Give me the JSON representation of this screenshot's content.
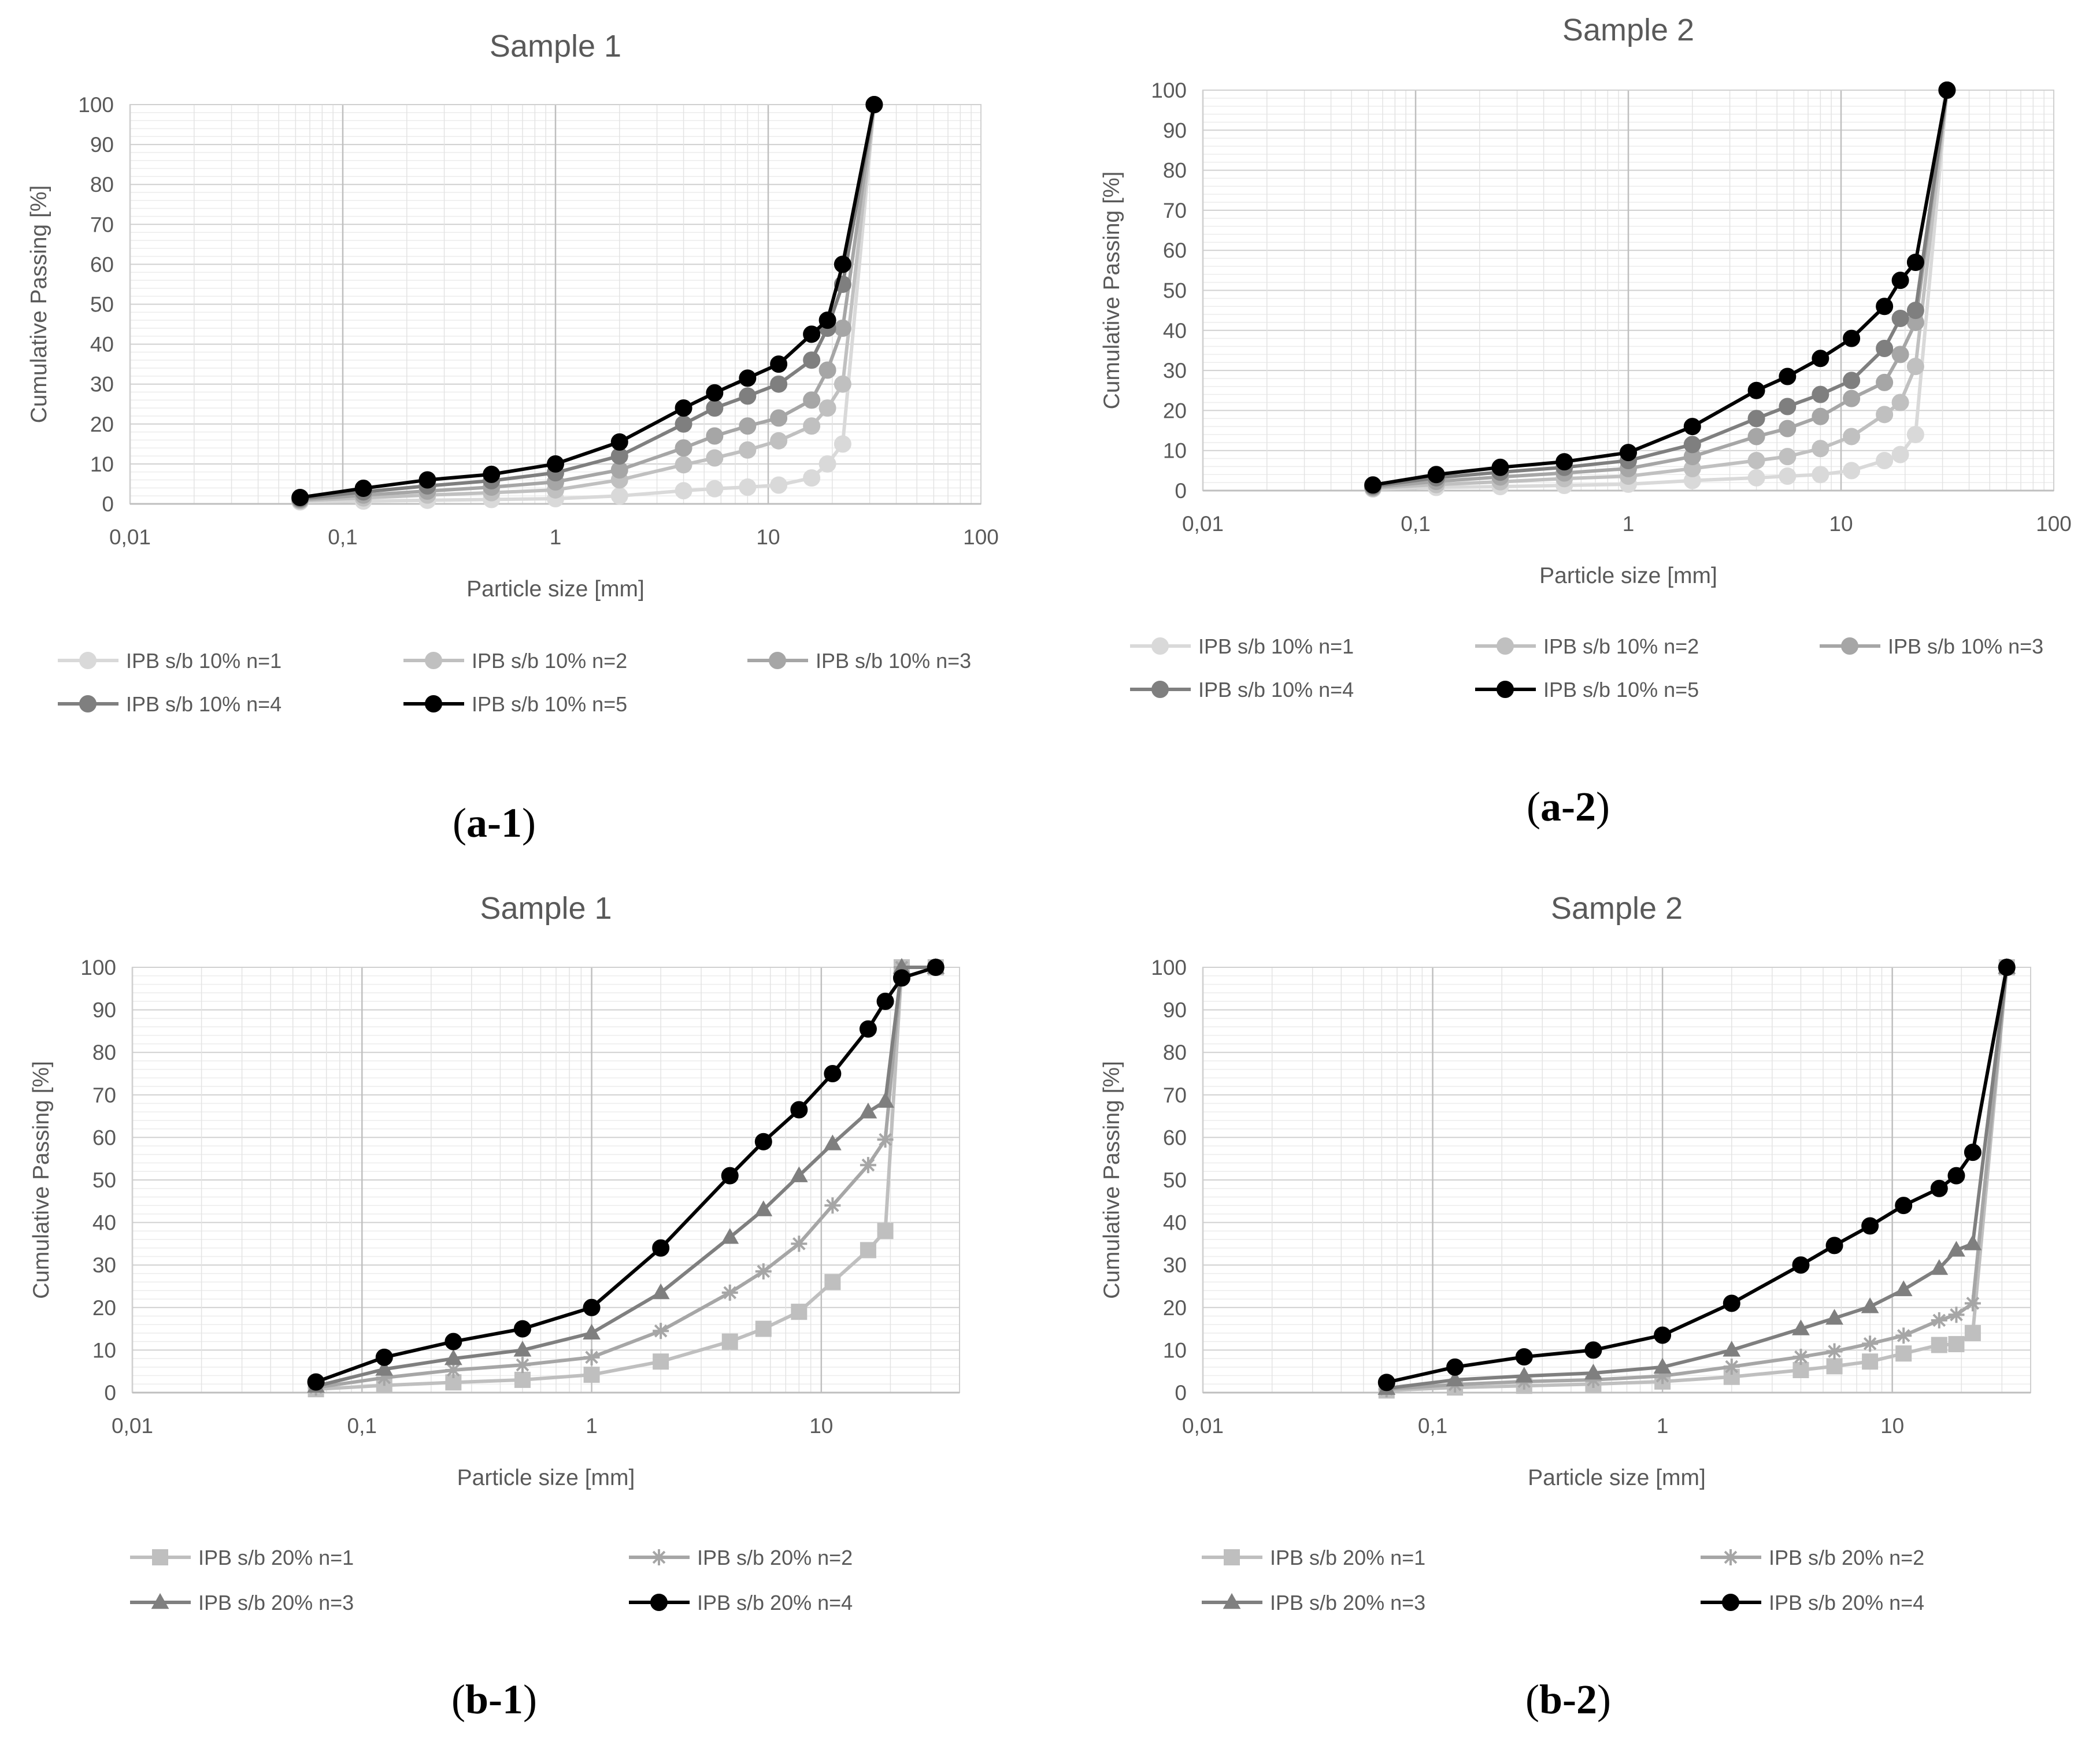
{
  "chart_data": [
    {
      "type": "line",
      "caption_letter": "a-1",
      "title": "Sample 1",
      "xlabel": "Particle size [mm]",
      "ylabel": "Cumulative Passing [%]",
      "xscale": "log",
      "xlim": [
        0.01,
        100
      ],
      "ylim": [
        0,
        100
      ],
      "xtick_labels": [
        "0,01",
        "0,1",
        "1",
        "10",
        "100"
      ],
      "ytick_labels": [
        "0",
        "10",
        "20",
        "30",
        "40",
        "50",
        "60",
        "70",
        "80",
        "90",
        "100"
      ],
      "grid": true,
      "legend_position": "bottom",
      "x": [
        0.063,
        0.125,
        0.25,
        0.5,
        1,
        2,
        4,
        5.6,
        8,
        11.2,
        16,
        19,
        22.4,
        31.5
      ],
      "series": [
        {
          "name": "IPB s/b 10% n=1",
          "color": "#d9d9d9",
          "marker": "circle",
          "values": [
            0.5,
            0.7,
            0.9,
            1.1,
            1.3,
            2,
            3.3,
            3.8,
            4.2,
            4.7,
            6.5,
            10,
            15,
            100
          ]
        },
        {
          "name": "IPB s/b 10% n=2",
          "color": "#c0c0c0",
          "marker": "circle",
          "values": [
            0.8,
            1.5,
            2.2,
            2.8,
            3.5,
            6,
            9.8,
            11.5,
            13.5,
            15.8,
            19.5,
            24,
            30,
            100
          ]
        },
        {
          "name": "IPB s/b 10% n=3",
          "color": "#a6a6a6",
          "marker": "circle",
          "values": [
            1.0,
            2.2,
            3.2,
            4.2,
            5.5,
            8.5,
            14,
            17,
            19.5,
            21.5,
            26,
            33.5,
            44,
            100
          ]
        },
        {
          "name": "IPB s/b 10% n=4",
          "color": "#7f7f7f",
          "marker": "circle",
          "values": [
            1.3,
            3.0,
            4.5,
            5.8,
            7.8,
            12,
            20,
            24,
            27,
            30,
            36,
            44,
            55,
            100
          ]
        },
        {
          "name": "IPB s/b 10% n=5",
          "color": "#000000",
          "marker": "circle",
          "values": [
            1.6,
            3.9,
            6.0,
            7.4,
            10,
            15.5,
            24,
            27.8,
            31.5,
            35,
            42.5,
            46,
            60,
            100
          ]
        }
      ]
    },
    {
      "type": "line",
      "caption_letter": "a-2",
      "title": "Sample 2",
      "xlabel": "Particle size [mm]",
      "ylabel": "Cumulative Passing [%]",
      "xscale": "log",
      "xlim": [
        0.01,
        100
      ],
      "ylim": [
        0,
        100
      ],
      "xtick_labels": [
        "0,01",
        "0,1",
        "1",
        "10",
        "100"
      ],
      "ytick_labels": [
        "0",
        "10",
        "20",
        "30",
        "40",
        "50",
        "60",
        "70",
        "80",
        "90",
        "100"
      ],
      "grid": true,
      "legend_position": "bottom",
      "x": [
        0.063,
        0.125,
        0.25,
        0.5,
        1,
        2,
        4,
        5.6,
        8,
        11.2,
        16,
        19,
        22.4,
        31.5
      ],
      "series": [
        {
          "name": "IPB s/b 10% n=1",
          "color": "#d9d9d9",
          "marker": "circle",
          "values": [
            0.4,
            0.8,
            1.0,
            1.3,
            1.6,
            2.5,
            3.2,
            3.6,
            4.0,
            5.0,
            7.5,
            9,
            14,
            100
          ]
        },
        {
          "name": "IPB s/b 10% n=2",
          "color": "#c0c0c0",
          "marker": "circle",
          "values": [
            0.6,
            1.5,
            2.2,
            3.0,
            3.6,
            5.5,
            7.5,
            8.5,
            10.5,
            13.5,
            19,
            22,
            31,
            100
          ]
        },
        {
          "name": "IPB s/b 10% n=3",
          "color": "#a6a6a6",
          "marker": "circle",
          "values": [
            0.8,
            2.3,
            3.4,
            4.4,
            5.5,
            8.5,
            13.5,
            15.5,
            18.5,
            23,
            27,
            34,
            42,
            100
          ]
        },
        {
          "name": "IPB s/b 10% n=4",
          "color": "#7f7f7f",
          "marker": "circle",
          "values": [
            1.1,
            3.2,
            4.6,
            5.8,
            7.5,
            11.5,
            18,
            21,
            24,
            27.5,
            35.5,
            43,
            45,
            100
          ]
        },
        {
          "name": "IPB s/b 10% n=5",
          "color": "#000000",
          "marker": "circle",
          "values": [
            1.4,
            4.0,
            5.8,
            7.2,
            9.5,
            16,
            25,
            28.5,
            33,
            38,
            46,
            52.5,
            57,
            100
          ]
        }
      ]
    },
    {
      "type": "line",
      "caption_letter": "b-1",
      "title": "Sample 1",
      "xlabel": "Particle size [mm]",
      "ylabel": "Cumulative Passing [%]",
      "xscale": "log",
      "xlim": [
        0.01,
        40
      ],
      "ylim": [
        0,
        100
      ],
      "xtick_labels": [
        "0,01",
        "0,1",
        "1",
        "10"
      ],
      "ytick_labels": [
        "0",
        "10",
        "20",
        "30",
        "40",
        "50",
        "60",
        "70",
        "80",
        "90",
        "100"
      ],
      "grid": true,
      "legend_position": "bottom",
      "x": [
        0.063,
        0.125,
        0.25,
        0.5,
        1,
        2,
        4,
        5.6,
        8,
        11.2,
        16,
        19,
        22.4,
        31.5
      ],
      "series": [
        {
          "name": "IPB s/b 20% n=1",
          "color": "#bfbfbf",
          "marker": "square",
          "values": [
            0.8,
            1.7,
            2.4,
            3.0,
            4.2,
            7.3,
            12,
            15,
            19,
            26,
            33.5,
            38,
            100,
            100
          ]
        },
        {
          "name": "IPB s/b 20% n=2",
          "color": "#a6a6a6",
          "marker": "star",
          "values": [
            1.2,
            3.5,
            5.3,
            6.5,
            8.3,
            14.5,
            23.5,
            28.5,
            35,
            44,
            53.5,
            59.5,
            100,
            100
          ]
        },
        {
          "name": "IPB s/b 20% n=3",
          "color": "#7f7f7f",
          "marker": "triangle",
          "values": [
            1.5,
            5.5,
            8,
            10,
            14,
            23.5,
            36.5,
            43,
            51,
            58.5,
            66,
            68.5,
            100,
            100
          ]
        },
        {
          "name": "IPB s/b 20% n=4",
          "color": "#000000",
          "marker": "circle",
          "values": [
            2.5,
            8.3,
            12,
            15,
            20,
            34,
            51,
            59,
            66.5,
            75,
            85.5,
            92,
            97.5,
            100
          ]
        }
      ]
    },
    {
      "type": "line",
      "caption_letter": "b-2",
      "title": "Sample 2",
      "xlabel": "Particle size [mm]",
      "ylabel": "Cumulative Passing [%]",
      "xscale": "log",
      "xlim": [
        0.01,
        40
      ],
      "ylim": [
        0,
        100
      ],
      "xtick_labels": [
        "0,01",
        "0,1",
        "1",
        "10"
      ],
      "ytick_labels": [
        "0",
        "10",
        "20",
        "30",
        "40",
        "50",
        "60",
        "70",
        "80",
        "90",
        "100"
      ],
      "grid": true,
      "legend_position": "bottom",
      "x": [
        0.063,
        0.125,
        0.25,
        0.5,
        1,
        2,
        4,
        5.6,
        8,
        11.2,
        16,
        19,
        22.4,
        31.5
      ],
      "series": [
        {
          "name": "IPB s/b 20% n=1",
          "color": "#bfbfbf",
          "marker": "square",
          "values": [
            0.5,
            1.2,
            1.6,
            2.0,
            2.6,
            3.7,
            5.3,
            6.2,
            7.3,
            9.2,
            11.2,
            11.4,
            14,
            100
          ]
        },
        {
          "name": "IPB s/b 20% n=2",
          "color": "#a6a6a6",
          "marker": "star",
          "values": [
            0.8,
            1.9,
            2.6,
            3.0,
            3.9,
            6.1,
            8.4,
            9.7,
            11.5,
            13.4,
            17.0,
            18.3,
            21,
            100
          ]
        },
        {
          "name": "IPB s/b 20% n=3",
          "color": "#7f7f7f",
          "marker": "triangle",
          "values": [
            1.0,
            3.0,
            3.9,
            4.6,
            6.0,
            10.0,
            15,
            17.5,
            20.2,
            24.2,
            29.2,
            33.5,
            35,
            100
          ]
        },
        {
          "name": "IPB s/b 20% n=4",
          "color": "#000000",
          "marker": "circle",
          "values": [
            2.4,
            6.0,
            8.4,
            10.0,
            13.5,
            21,
            30,
            34.6,
            39.2,
            44,
            48,
            51,
            56.5,
            100
          ]
        }
      ]
    }
  ]
}
